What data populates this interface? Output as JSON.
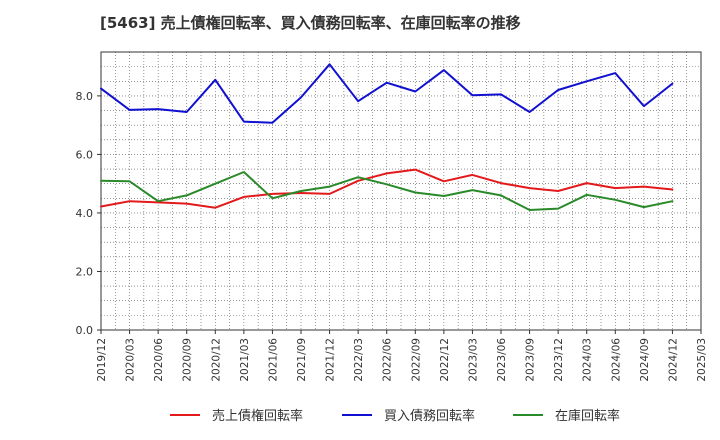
{
  "chart_data": {
    "type": "line",
    "title": "[5463]  売上債権回転率、買入債務回転率、在庫回転率の推移",
    "xlabel": "",
    "ylabel": "",
    "ylim": [
      0,
      9.5
    ],
    "yticks": [
      "0.0",
      "2.0",
      "4.0",
      "6.0",
      "8.0"
    ],
    "x": [
      "2019/12",
      "2020/03",
      "2020/06",
      "2020/09",
      "2020/12",
      "2021/03",
      "2021/06",
      "2021/09",
      "2021/12",
      "2022/03",
      "2022/06",
      "2022/09",
      "2022/12",
      "2023/03",
      "2023/06",
      "2023/09",
      "2023/12",
      "2024/03",
      "2024/06",
      "2024/09",
      "2024/12",
      "2025/03"
    ],
    "grid": true,
    "legend_position": "bottom",
    "series": [
      {
        "name": "売上債権回転率",
        "color": "#e31a1c",
        "values": [
          4.22,
          4.4,
          4.36,
          4.32,
          4.18,
          4.55,
          4.65,
          4.68,
          4.65,
          5.1,
          5.35,
          5.48,
          5.08,
          5.3,
          5.02,
          4.85,
          4.75,
          5.02,
          4.85,
          4.9,
          4.8,
          null
        ]
      },
      {
        "name": "買入債務回転率",
        "color": "#1010d0",
        "values": [
          8.25,
          7.52,
          7.55,
          7.45,
          8.55,
          7.12,
          7.08,
          7.95,
          9.08,
          7.82,
          8.45,
          8.15,
          8.88,
          8.02,
          8.05,
          7.45,
          8.2,
          8.5,
          8.78,
          7.65,
          8.42,
          null
        ]
      },
      {
        "name": "在庫回転率",
        "color": "#2a8a2a",
        "values": [
          5.1,
          5.08,
          4.4,
          4.6,
          5.0,
          5.4,
          4.5,
          4.75,
          4.9,
          5.22,
          4.98,
          4.7,
          4.58,
          4.78,
          4.6,
          4.1,
          4.15,
          4.62,
          4.45,
          4.2,
          4.4,
          null
        ]
      }
    ]
  }
}
